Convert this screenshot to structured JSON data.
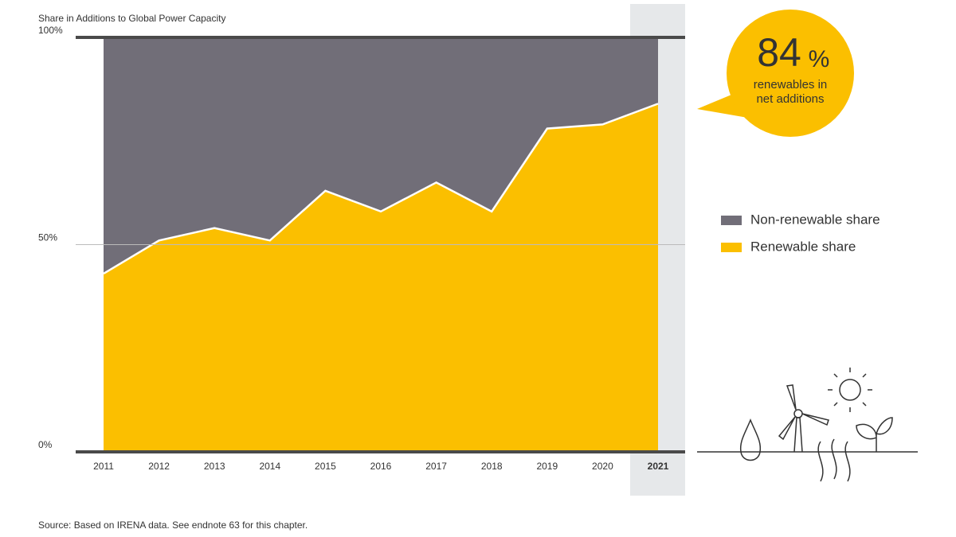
{
  "chart_data": {
    "type": "stacked_area",
    "title": "Share in Additions to Global Power Capacity",
    "categories": [
      "2011",
      "2012",
      "2013",
      "2014",
      "2015",
      "2016",
      "2017",
      "2018",
      "2019",
      "2020",
      "2021"
    ],
    "series": [
      {
        "name": "Non-renewable share",
        "color": "#716e78",
        "values": [
          57,
          49,
          46,
          49,
          37,
          42,
          35,
          42,
          22,
          21,
          16
        ]
      },
      {
        "name": "Renewable share",
        "color": "#fbbf00",
        "values": [
          43,
          51,
          54,
          51,
          63,
          58,
          65,
          58,
          78,
          79,
          84
        ]
      }
    ],
    "ylim": [
      0,
      100
    ],
    "yticks": [
      {
        "value": 0,
        "label": "0%"
      },
      {
        "value": 50,
        "label": "50%"
      },
      {
        "value": 100,
        "label": "100%"
      }
    ],
    "callout": {
      "number": "84",
      "unit": "%",
      "lines": [
        "renewables in",
        "net additions"
      ]
    },
    "source": "Source: Based on IRENA data. See endnote 63 for this chapter."
  }
}
